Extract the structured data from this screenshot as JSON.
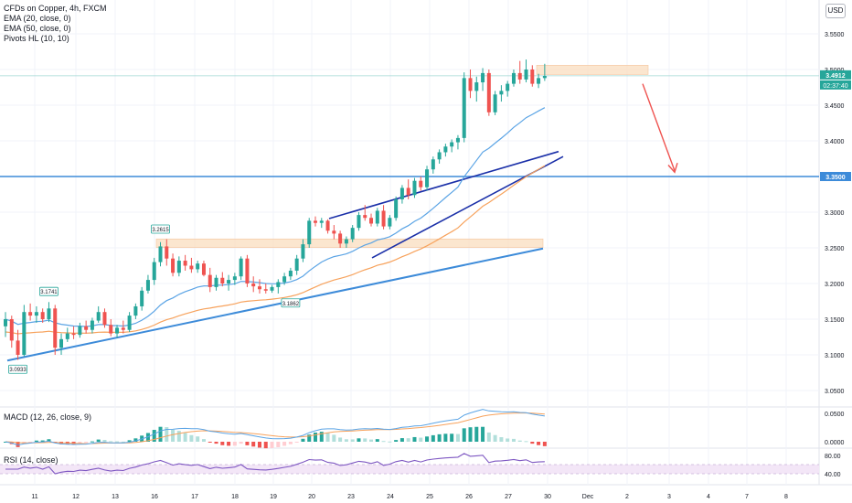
{
  "header": {
    "symbol": "CFDs on Copper, 4h, FXCM",
    "indicators": [
      "EMA (20, close, 0)",
      "EMA (50, close, 0)",
      "Pivots HL (10, 10)"
    ],
    "currency": "USD"
  },
  "price_tags": {
    "last": "3.4912",
    "countdown": "02:37:40",
    "level": "3.3500"
  },
  "pivot_labels": [
    "3.0933",
    "3.1741",
    "3.2615",
    "3.1862"
  ],
  "macd_label": "MACD (12, 26, close, 9)",
  "rsi_label": "RSI (14, close)",
  "colors": {
    "up": "#26a69a",
    "down": "#ef5350",
    "ema20": "#5ba4e5",
    "ema50": "#f7a25c",
    "trend": "#3d8bd9",
    "wedge": "#1a2fa8",
    "arrow": "#ef5350",
    "supply_zone": "#fbe0c4",
    "level_line": "#3d8bd9",
    "rsi_band": "#f3e6f7",
    "rsi_line": "#7e57c2"
  },
  "chart_data": [
    {
      "type": "candlestick",
      "title": "CFDs on Copper, 4h, FXCM",
      "y_ticks": [
        "3.5500",
        "3.5000",
        "3.4500",
        "3.4000",
        "3.3500",
        "3.3000",
        "3.2500",
        "3.2000",
        "3.1500",
        "3.1000",
        "3.0500"
      ],
      "x_ticks": [
        "11",
        "12",
        "13",
        "16",
        "17",
        "18",
        "19",
        "20",
        "23",
        "24",
        "25",
        "26",
        "27",
        "30",
        "Dec",
        "2",
        "3",
        "4",
        "7",
        "8"
      ],
      "ylim": [
        3.03,
        3.57
      ],
      "series": [
        {
          "name": "EMA (20, close, 0)"
        },
        {
          "name": "EMA (50, close, 0)"
        }
      ],
      "horizontal_level": 3.35,
      "pivots": [
        3.0933,
        3.1741,
        3.2615,
        3.1862
      ],
      "candles": [
        [
          3.14,
          3.16,
          3.125,
          3.15
        ],
        [
          3.15,
          3.155,
          3.11,
          3.12
        ],
        [
          3.12,
          3.135,
          3.093,
          3.1
        ],
        [
          3.1,
          3.17,
          3.098,
          3.16
        ],
        [
          3.16,
          3.172,
          3.148,
          3.155
        ],
        [
          3.155,
          3.168,
          3.145,
          3.16
        ],
        [
          3.16,
          3.165,
          3.145,
          3.15
        ],
        [
          3.15,
          3.174,
          3.146,
          3.165
        ],
        [
          3.165,
          3.17,
          3.1,
          3.11
        ],
        [
          3.11,
          3.13,
          3.1,
          3.122
        ],
        [
          3.122,
          3.138,
          3.118,
          3.13
        ],
        [
          3.13,
          3.14,
          3.122,
          3.128
        ],
        [
          3.128,
          3.145,
          3.124,
          3.14
        ],
        [
          3.14,
          3.148,
          3.13,
          3.135
        ],
        [
          3.135,
          3.152,
          3.13,
          3.148
        ],
        [
          3.148,
          3.168,
          3.145,
          3.16
        ],
        [
          3.16,
          3.165,
          3.138,
          3.142
        ],
        [
          3.142,
          3.15,
          3.126,
          3.13
        ],
        [
          3.13,
          3.142,
          3.124,
          3.138
        ],
        [
          3.138,
          3.148,
          3.13,
          3.135
        ],
        [
          3.135,
          3.16,
          3.132,
          3.155
        ],
        [
          3.155,
          3.172,
          3.15,
          3.168
        ],
        [
          3.168,
          3.195,
          3.162,
          3.19
        ],
        [
          3.19,
          3.212,
          3.186,
          3.205
        ],
        [
          3.205,
          3.236,
          3.198,
          3.23
        ],
        [
          3.23,
          3.258,
          3.224,
          3.252
        ],
        [
          3.252,
          3.262,
          3.225,
          3.235
        ],
        [
          3.235,
          3.242,
          3.21,
          3.215
        ],
        [
          3.215,
          3.238,
          3.21,
          3.232
        ],
        [
          3.232,
          3.24,
          3.218,
          3.225
        ],
        [
          3.225,
          3.236,
          3.215,
          3.22
        ],
        [
          3.22,
          3.232,
          3.215,
          3.228
        ],
        [
          3.228,
          3.232,
          3.21,
          3.212
        ],
        [
          3.212,
          3.222,
          3.188,
          3.195
        ],
        [
          3.195,
          3.212,
          3.19,
          3.208
        ],
        [
          3.208,
          3.216,
          3.196,
          3.2
        ],
        [
          3.2,
          3.212,
          3.19,
          3.205
        ],
        [
          3.205,
          3.215,
          3.198,
          3.21
        ],
        [
          3.21,
          3.238,
          3.205,
          3.235
        ],
        [
          3.235,
          3.24,
          3.195,
          3.2
        ],
        [
          3.2,
          3.21,
          3.188,
          3.196
        ],
        [
          3.196,
          3.206,
          3.186,
          3.192
        ],
        [
          3.192,
          3.2,
          3.186,
          3.19
        ],
        [
          3.19,
          3.198,
          3.187,
          3.195
        ],
        [
          3.195,
          3.206,
          3.186,
          3.202
        ],
        [
          3.202,
          3.215,
          3.198,
          3.21
        ],
        [
          3.21,
          3.222,
          3.205,
          3.218
        ],
        [
          3.218,
          3.24,
          3.212,
          3.235
        ],
        [
          3.235,
          3.262,
          3.23,
          3.255
        ],
        [
          3.255,
          3.292,
          3.25,
          3.288
        ],
        [
          3.288,
          3.294,
          3.28,
          3.285
        ],
        [
          3.285,
          3.292,
          3.278,
          3.288
        ],
        [
          3.288,
          3.29,
          3.27,
          3.274
        ],
        [
          3.274,
          3.282,
          3.262,
          3.27
        ],
        [
          3.27,
          3.274,
          3.25,
          3.256
        ],
        [
          3.256,
          3.266,
          3.25,
          3.262
        ],
        [
          3.262,
          3.282,
          3.258,
          3.278
        ],
        [
          3.278,
          3.3,
          3.274,
          3.296
        ],
        [
          3.296,
          3.31,
          3.288,
          3.292
        ],
        [
          3.292,
          3.298,
          3.28,
          3.284
        ],
        [
          3.284,
          3.306,
          3.28,
          3.302
        ],
        [
          3.302,
          3.31,
          3.276,
          3.28
        ],
        [
          3.28,
          3.296,
          3.276,
          3.292
        ],
        [
          3.292,
          3.322,
          3.288,
          3.318
        ],
        [
          3.318,
          3.338,
          3.312,
          3.334
        ],
        [
          3.334,
          3.346,
          3.318,
          3.324
        ],
        [
          3.324,
          3.348,
          3.32,
          3.344
        ],
        [
          3.344,
          3.35,
          3.33,
          3.335
        ],
        [
          3.335,
          3.365,
          3.33,
          3.36
        ],
        [
          3.36,
          3.378,
          3.354,
          3.374
        ],
        [
          3.374,
          3.388,
          3.368,
          3.384
        ],
        [
          3.384,
          3.396,
          3.378,
          3.392
        ],
        [
          3.392,
          3.402,
          3.384,
          3.398
        ],
        [
          3.398,
          3.408,
          3.388,
          3.404
        ],
        [
          3.404,
          3.496,
          3.398,
          3.488
        ],
        [
          3.488,
          3.5,
          3.46,
          3.47
        ],
        [
          3.47,
          3.49,
          3.455,
          3.482
        ],
        [
          3.482,
          3.502,
          3.47,
          3.495
        ],
        [
          3.495,
          3.5,
          3.435,
          3.44
        ],
        [
          3.44,
          3.47,
          3.436,
          3.465
        ],
        [
          3.465,
          3.478,
          3.455,
          3.47
        ],
        [
          3.47,
          3.484,
          3.462,
          3.48
        ],
        [
          3.48,
          3.5,
          3.476,
          3.495
        ],
        [
          3.495,
          3.512,
          3.48,
          3.486
        ],
        [
          3.486,
          3.514,
          3.482,
          3.5
        ],
        [
          3.5,
          3.506,
          3.476,
          3.48
        ],
        [
          3.48,
          3.494,
          3.474,
          3.488
        ],
        [
          3.488,
          3.508,
          3.484,
          3.491
        ]
      ]
    },
    {
      "type": "histogram+line",
      "name": "MACD (12, 26, close, 9)",
      "y_ticks": [
        "0.0500",
        "0.0000"
      ],
      "ylim": [
        -0.012,
        0.066
      ]
    },
    {
      "type": "line",
      "name": "RSI (14, close)",
      "y_ticks": [
        "80.00",
        "40.00"
      ],
      "ylim": [
        30,
        90
      ],
      "band": [
        40,
        60
      ]
    }
  ]
}
